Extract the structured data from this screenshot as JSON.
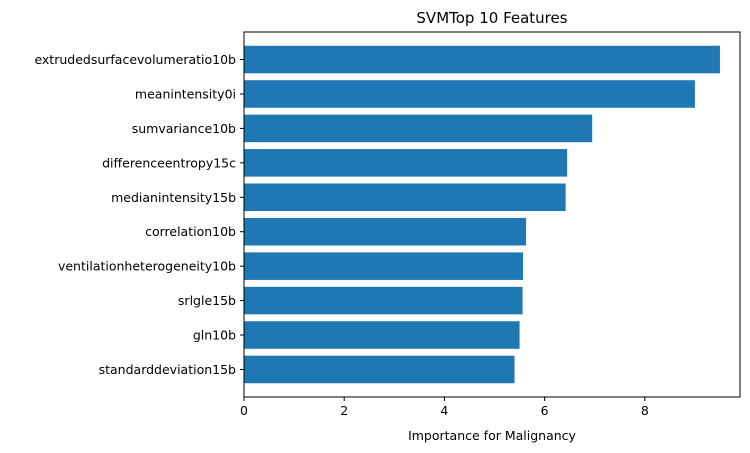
{
  "chart_data": {
    "type": "bar",
    "orientation": "horizontal",
    "title": "SVMTop 10 Features",
    "xlabel": "Importance for Malignancy",
    "ylabel": "",
    "xlim": [
      0,
      9.9
    ],
    "xticks": [
      0,
      2,
      4,
      6,
      8
    ],
    "categories": [
      "extrudedsurfacevolumeratio10b",
      "meanintensity0i",
      "sumvariance10b",
      "differenceentropy15c",
      "medianintensity15b",
      "correlation10b",
      "ventilationheterogeneity10b",
      "srlgle15b",
      "gln10b",
      "standarddeviation15b"
    ],
    "values": [
      9.5,
      9.0,
      6.95,
      6.45,
      6.42,
      5.63,
      5.57,
      5.56,
      5.5,
      5.4
    ],
    "bar_color": "#1f77b4",
    "grid": false
  }
}
